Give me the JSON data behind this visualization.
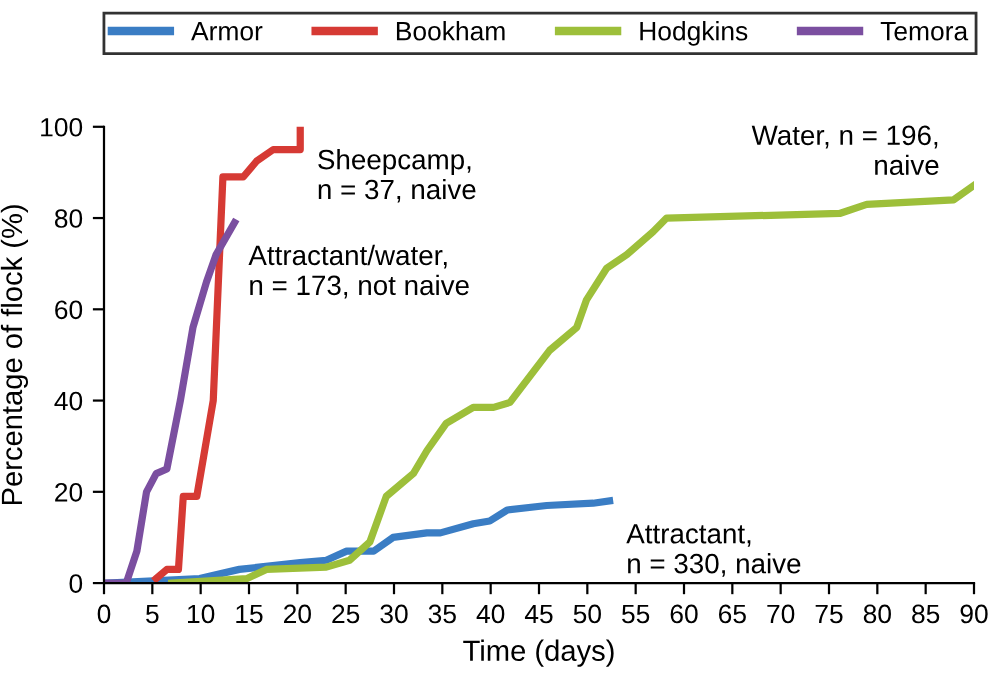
{
  "chart_data": {
    "type": "line",
    "xlabel": "Time (days)",
    "ylabel": "Percentage of flock (%)",
    "xlim": [
      0,
      90
    ],
    "ylim": [
      0,
      100
    ],
    "xticks": [
      0,
      5,
      10,
      15,
      20,
      25,
      30,
      35,
      40,
      45,
      50,
      55,
      60,
      65,
      70,
      75,
      80,
      85,
      90
    ],
    "yticks": [
      0,
      20,
      40,
      60,
      80,
      100
    ],
    "grid": false,
    "legend": "top",
    "marker": "none",
    "line_style": "solid",
    "series": [
      {
        "name": "Armor",
        "color": "#3a7dc4",
        "x": [
          0.3,
          9.9,
          14,
          20.3,
          23,
          25.1,
          27.9,
          29.9,
          33.4,
          34.8,
          38.2,
          39.9,
          41.7,
          45.8,
          50.6,
          52.3
        ],
        "values": [
          0,
          1,
          3,
          4.5,
          5,
          7,
          7,
          10,
          11,
          11,
          13,
          13.6,
          16,
          17,
          17.5,
          18
        ]
      },
      {
        "name": "Bookham",
        "color": "#d63a34",
        "x": [
          5.4,
          6.5,
          7.7,
          8.2,
          9.6,
          11.3,
          12.3,
          14.4,
          15.8,
          17.5,
          20.3,
          20.3
        ],
        "values": [
          1,
          3,
          3,
          19,
          19,
          40,
          89,
          89,
          92.5,
          95,
          95,
          100
        ]
      },
      {
        "name": "Hodgkins",
        "color": "#9dbf3a",
        "x": [
          7,
          14.8,
          16.8,
          23,
          25.4,
          27.5,
          29.2,
          32,
          33.4,
          35.4,
          38.2,
          40.3,
          42,
          46.1,
          48.9,
          49.9,
          52,
          54.1,
          56.8,
          58.2,
          76.1,
          78.9,
          87.9,
          89.9
        ],
        "values": [
          0,
          1,
          3,
          3.5,
          5,
          9,
          19,
          24,
          29,
          35,
          38.5,
          38.5,
          39.6,
          51,
          56,
          62,
          69,
          72,
          77,
          80,
          81,
          83,
          84,
          87
        ]
      },
      {
        "name": "Temora",
        "color": "#7b4fa0",
        "x": [
          0.3,
          2.3,
          3.4,
          4.4,
          5.4,
          6.5,
          7.9,
          9.2,
          10.6,
          11.6,
          13.5
        ],
        "values": [
          0,
          0,
          7,
          20,
          24,
          25,
          40,
          56,
          66,
          72,
          79
        ]
      }
    ],
    "annotations": [
      {
        "text": "Sheepcamp, n = 37, naive",
        "x": 20.3,
        "y": 100
      },
      {
        "text": "Attractant/water, n = 173, not naive",
        "x": 13.5,
        "y": 79
      },
      {
        "text": "Water, n = 196, naive",
        "x": 89.9,
        "y": 87
      },
      {
        "text": "Attractant, n = 330, naive",
        "x": 52.3,
        "y": 18
      }
    ]
  }
}
